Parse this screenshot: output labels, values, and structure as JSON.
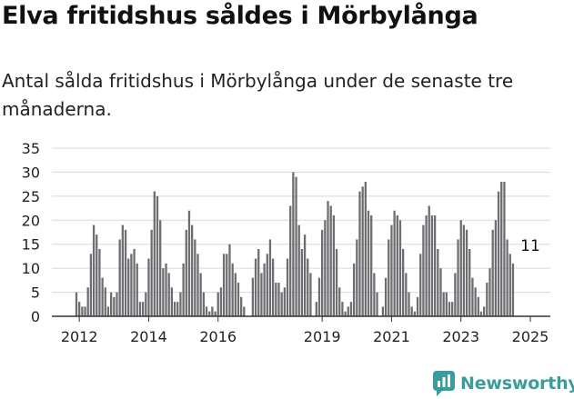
{
  "title": "Elva fritidshus såldes i Mörbylånga",
  "subtitle": "Antal sålda fritidshus i Mörbylånga under de senaste tre månaderna.",
  "brand": {
    "name": "Newsworthy",
    "icon": "newsworthy-logo-icon",
    "color": "#3a9c9b"
  },
  "chart_data": {
    "type": "bar",
    "title": "",
    "xlabel": "",
    "ylabel": "",
    "ylim": [
      0,
      35
    ],
    "yticks": [
      0,
      5,
      10,
      15,
      20,
      25,
      30,
      35
    ],
    "grid": true,
    "bar_color": "#6e6e72",
    "highlight_color": "#2a9d8f",
    "start": "2011-12",
    "end": "2025-01",
    "x_tick_labels": [
      {
        "label": "2012",
        "month": "2012-01"
      },
      {
        "label": "2014",
        "month": "2014-01"
      },
      {
        "label": "2016",
        "month": "2016-01"
      },
      {
        "label": "2019",
        "month": "2019-01"
      },
      {
        "label": "2021",
        "month": "2021-01"
      },
      {
        "label": "2023",
        "month": "2023-01"
      },
      {
        "label": "2025",
        "month": "2025-01"
      }
    ],
    "values": [
      5,
      3,
      2,
      2,
      6,
      13,
      19,
      17,
      14,
      8,
      6,
      2,
      5,
      4,
      5,
      16,
      19,
      18,
      12,
      13,
      14,
      11,
      3,
      3,
      5,
      12,
      18,
      26,
      25,
      20,
      10,
      11,
      9,
      6,
      3,
      3,
      5,
      11,
      18,
      22,
      19,
      16,
      13,
      9,
      5,
      2,
      1,
      2,
      1,
      5,
      6,
      13,
      13,
      15,
      11,
      9,
      7,
      4,
      2,
      0,
      0,
      8,
      12,
      14,
      9,
      11,
      13,
      16,
      12,
      7,
      7,
      5,
      6,
      12,
      23,
      30,
      29,
      19,
      14,
      17,
      12,
      9,
      0,
      3,
      8,
      18,
      20,
      24,
      23,
      21,
      14,
      6,
      3,
      1,
      2,
      3,
      11,
      16,
      26,
      27,
      28,
      22,
      21,
      9,
      5,
      0,
      2,
      8,
      16,
      19,
      22,
      21,
      20,
      14,
      9,
      5,
      2,
      1,
      4,
      13,
      19,
      21,
      23,
      21,
      21,
      14,
      10,
      5,
      5,
      3,
      3,
      9,
      16,
      20,
      19,
      18,
      14,
      8,
      6,
      4,
      1,
      2,
      7,
      10,
      18,
      20,
      26,
      28,
      28,
      16,
      13,
      11
    ],
    "highlight": {
      "month": "2025-01",
      "value": 11,
      "label": "11"
    }
  }
}
